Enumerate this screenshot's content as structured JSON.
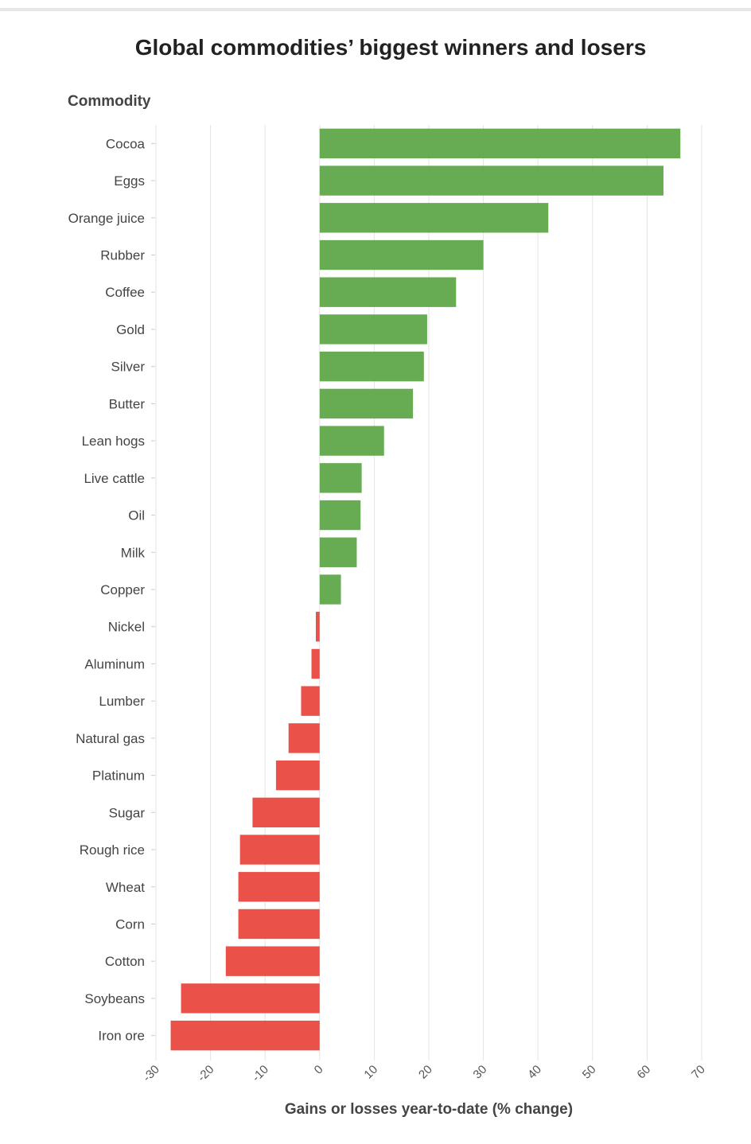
{
  "chart_data": {
    "type": "bar",
    "orientation": "horizontal",
    "title": "Global commodities’ biggest winners and losers",
    "ylabel": "Commodity",
    "xlabel": "Gains or losses year-to-date (% change)",
    "categories": [
      "Cocoa",
      "Eggs",
      "Orange juice",
      "Rubber",
      "Coffee",
      "Gold",
      "Silver",
      "Butter",
      "Lean hogs",
      "Live cattle",
      "Oil",
      "Milk",
      "Copper",
      "Nickel",
      "Aluminum",
      "Lumber",
      "Natural gas",
      "Platinum",
      "Sugar",
      "Rough rice",
      "Wheat",
      "Corn",
      "Cotton",
      "Soybeans",
      "Iron ore"
    ],
    "values": [
      66.1,
      63.0,
      41.9,
      30.0,
      25.0,
      19.7,
      19.1,
      17.1,
      11.8,
      7.7,
      7.5,
      6.8,
      3.9,
      -0.7,
      -1.5,
      -3.4,
      -5.7,
      -8.0,
      -12.3,
      -14.6,
      -14.9,
      -14.9,
      -17.2,
      -25.4,
      -27.3
    ],
    "xlim": [
      -30,
      70
    ],
    "xticks": [
      "-30",
      "-20",
      "-10",
      "0",
      "10",
      "20",
      "30",
      "40",
      "50",
      "60",
      "70"
    ],
    "grid": true,
    "colors": {
      "positive": "#5aa544",
      "negative": "#e8433a"
    }
  }
}
